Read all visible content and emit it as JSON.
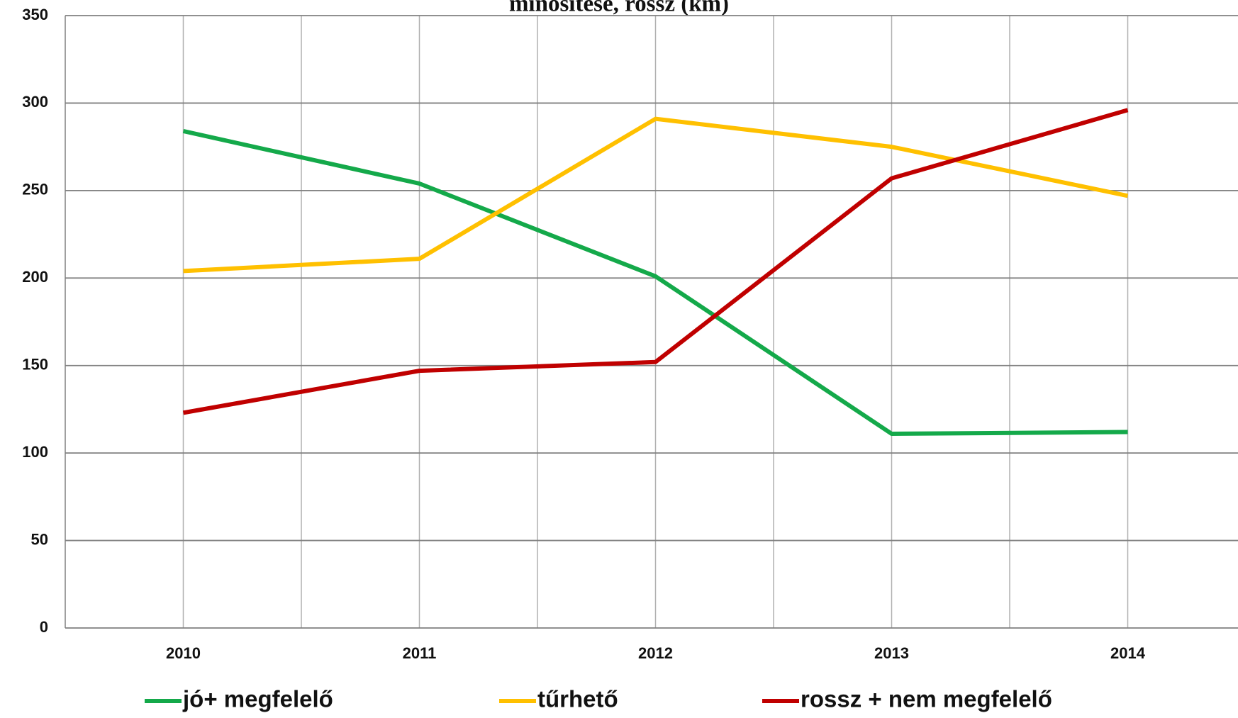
{
  "chart_data": {
    "type": "line",
    "title": "minősítése, rossz (km)",
    "categories": [
      "2010",
      "2011",
      "2012",
      "2013",
      "2014"
    ],
    "series": [
      {
        "name": "jó+ megfelelő",
        "color": "#14a94a",
        "values": [
          284,
          254,
          201,
          111,
          112
        ]
      },
      {
        "name": "tűrhető",
        "color": "#ffc000",
        "values": [
          204,
          211,
          291,
          275,
          247
        ]
      },
      {
        "name": "rossz + nem megfelelő",
        "color": "#c00000",
        "values": [
          123,
          147,
          152,
          257,
          296
        ]
      }
    ],
    "ylim": [
      0,
      350
    ],
    "yticks": [
      0,
      50,
      100,
      150,
      200,
      250,
      300,
      350
    ],
    "grid": true,
    "legend": "bottom"
  }
}
